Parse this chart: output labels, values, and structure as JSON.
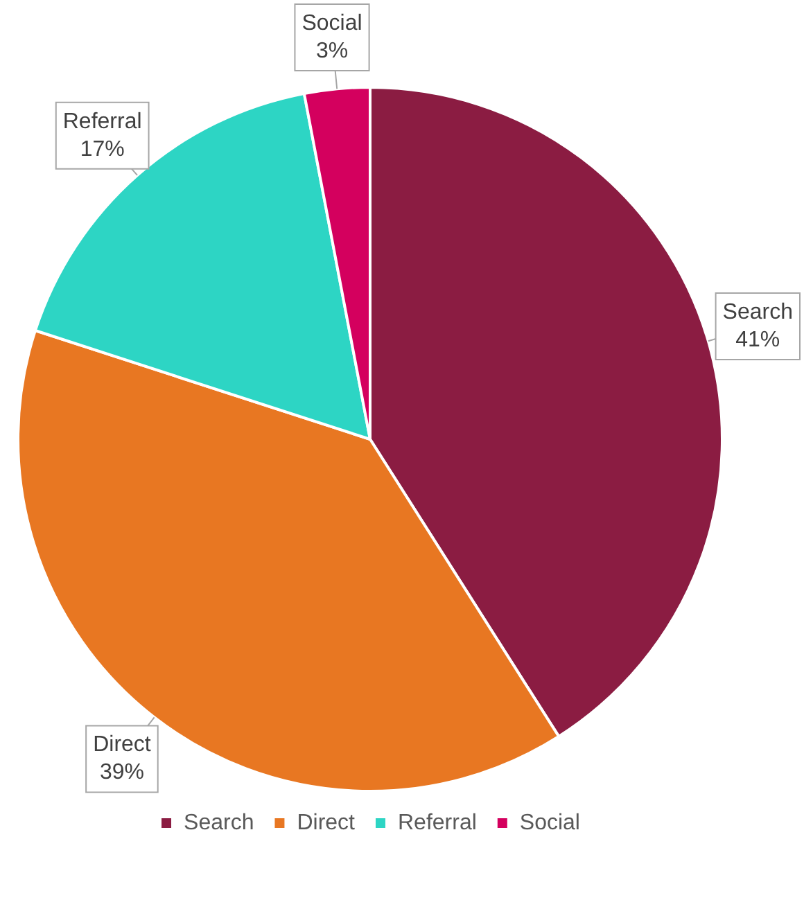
{
  "chart_data": {
    "type": "pie",
    "categories": [
      "Search",
      "Direct",
      "Referral",
      "Social"
    ],
    "values": [
      41,
      39,
      17,
      3
    ],
    "colors": [
      "#8b1c42",
      "#e87722",
      "#2dd5c4",
      "#d4005e"
    ],
    "value_labels": [
      "41%",
      "39%",
      "17%",
      "3%"
    ],
    "legend": "bottom"
  }
}
